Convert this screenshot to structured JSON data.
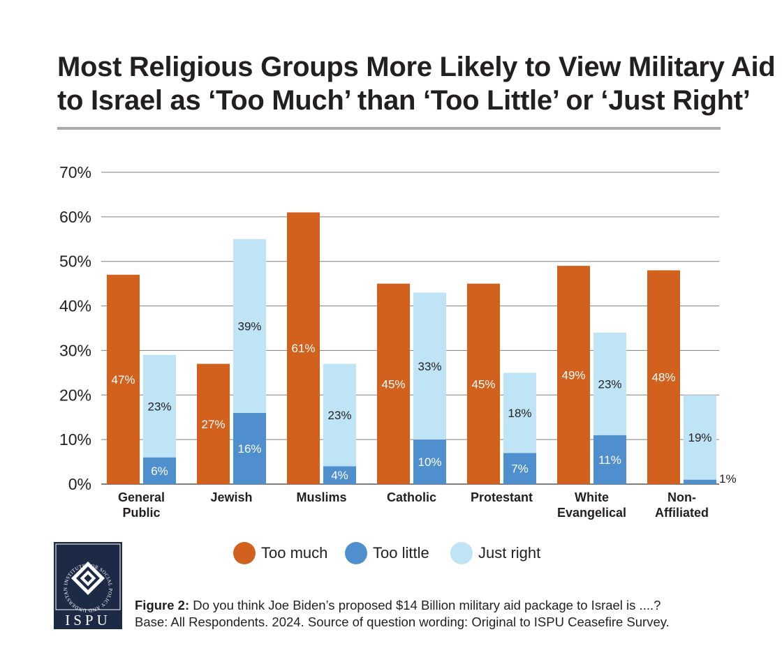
{
  "title": {
    "line1": "Most Religious Groups More Likely to View Military Aid",
    "line2": "to Israel as ‘Too Much’ than ‘Too Little’ or ‘Just Right’"
  },
  "colors": {
    "too_much": "#d2611e",
    "too_little": "#4f8fce",
    "just_right": "#bfe4f5",
    "grid": "#7f7f7f",
    "text": "#231f20",
    "logo_bg": "#1c2a45"
  },
  "chart_data": {
    "type": "bar",
    "stacked_second_bar": true,
    "title": "Most Religious Groups More Likely to View Military Aid to Israel as ‘Too Much’ than ‘Too Little’ or ‘Just Right’",
    "categories": [
      [
        "General",
        "Public"
      ],
      [
        "Jewish"
      ],
      [
        "Muslims"
      ],
      [
        "Catholic"
      ],
      [
        "Protestant"
      ],
      [
        "White",
        "Evangelical"
      ],
      [
        "Non-",
        "Affiliated"
      ]
    ],
    "series": [
      {
        "name": "Too much",
        "values": [
          47,
          27,
          61,
          45,
          45,
          49,
          48
        ],
        "labels": [
          "47%",
          "27%",
          "61%",
          "45%",
          "45%",
          "49%",
          "48%"
        ]
      },
      {
        "name": "Too little",
        "values": [
          6,
          16,
          4,
          10,
          7,
          11,
          1
        ],
        "labels": [
          "6%",
          "16%",
          "4%",
          "10%",
          "7%",
          "11%",
          "1%"
        ]
      },
      {
        "name": "Just right",
        "values": [
          23,
          39,
          23,
          33,
          18,
          23,
          19
        ],
        "labels": [
          "23%",
          "39%",
          "23%",
          "33%",
          "18%",
          "23%",
          "19%"
        ]
      }
    ],
    "yticks": [
      "0%",
      "10%",
      "20%",
      "30%",
      "40%",
      "50%",
      "60%",
      "70%"
    ],
    "ylim": [
      0,
      70
    ],
    "xlabel": "",
    "ylabel": "",
    "legend": [
      "Too much",
      "Too little",
      "Just right"
    ],
    "legend_position": "bottom"
  },
  "logo": {
    "text": "ISPU",
    "ring_text": "INSTITUTE FOR SOCIAL POLICY AND UNDERSTANDING"
  },
  "caption": {
    "figure_label": "Figure 2:",
    "question": " Do you think Joe Biden’s proposed $14 Billion military aid package to Israel is ....?",
    "line2": "Base: All Respondents. 2024. Source of question wording: Original to ISPU Ceasefire Survey."
  }
}
